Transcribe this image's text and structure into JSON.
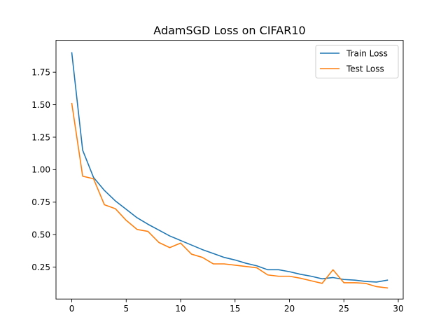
{
  "chart_data": {
    "type": "line",
    "title": "AdamSGD Loss on CIFAR10",
    "xlabel": "",
    "ylabel": "",
    "xlim": [
      -1.45,
      30.45
    ],
    "ylim": [
      0.0045,
      1.9955
    ],
    "x_ticks": [
      0,
      5,
      10,
      15,
      20,
      25,
      30
    ],
    "x_tick_labels": [
      "0",
      "5",
      "10",
      "15",
      "20",
      "25",
      "30"
    ],
    "y_ticks": [
      0.25,
      0.5,
      0.75,
      1.0,
      1.25,
      1.5,
      1.75
    ],
    "y_tick_labels": [
      "0.25",
      "0.50",
      "0.75",
      "1.00",
      "1.25",
      "1.50",
      "1.75"
    ],
    "grid": false,
    "legend_position": "top-right",
    "x": [
      0,
      1,
      2,
      3,
      4,
      5,
      6,
      7,
      8,
      9,
      10,
      11,
      12,
      13,
      14,
      15,
      16,
      17,
      18,
      19,
      20,
      21,
      22,
      23,
      24,
      25,
      26,
      27,
      28,
      29
    ],
    "series": [
      {
        "name": "Train Loss",
        "color": "#1f77b4",
        "values": [
          1.9,
          1.15,
          0.94,
          0.84,
          0.76,
          0.695,
          0.63,
          0.58,
          0.535,
          0.49,
          0.455,
          0.42,
          0.385,
          0.355,
          0.325,
          0.305,
          0.28,
          0.26,
          0.23,
          0.23,
          0.215,
          0.195,
          0.18,
          0.16,
          0.17,
          0.155,
          0.15,
          0.14,
          0.135,
          0.15
        ]
      },
      {
        "name": "Test Loss",
        "color": "#ff7f0e",
        "values": [
          1.51,
          0.95,
          0.93,
          0.73,
          0.7,
          0.61,
          0.54,
          0.525,
          0.44,
          0.4,
          0.435,
          0.35,
          0.325,
          0.275,
          0.275,
          0.265,
          0.255,
          0.245,
          0.19,
          0.18,
          0.18,
          0.165,
          0.145,
          0.125,
          0.23,
          0.13,
          0.13,
          0.125,
          0.1,
          0.09
        ]
      }
    ]
  }
}
